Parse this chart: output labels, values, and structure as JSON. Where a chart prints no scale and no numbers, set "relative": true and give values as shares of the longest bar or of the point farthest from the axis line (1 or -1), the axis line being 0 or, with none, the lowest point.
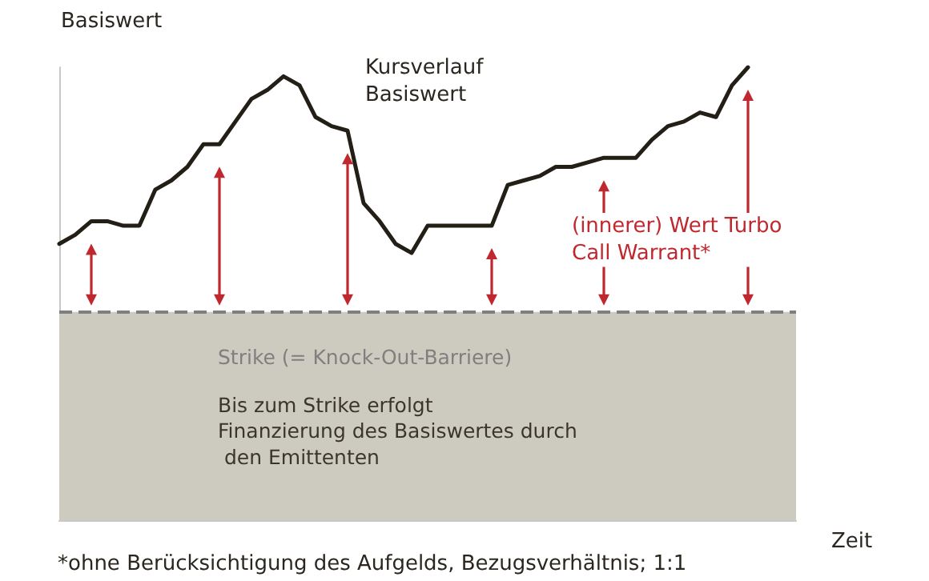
{
  "chart_data": {
    "type": "line",
    "relative": true,
    "ylabel": "Basiswert",
    "xlabel": "Zeit",
    "categories": [
      null,
      null,
      null,
      null,
      null,
      null,
      null,
      null,
      null,
      null,
      null,
      null,
      null,
      null,
      null,
      null,
      null,
      null,
      null,
      null,
      null,
      null,
      null,
      null,
      null,
      null,
      null,
      null,
      null,
      null,
      null,
      null,
      null,
      null,
      null,
      null,
      null,
      null,
      null,
      null,
      null,
      null,
      null,
      null,
      null,
      null,
      null
    ],
    "series": [
      {
        "name": "Kursverlauf Basiswert",
        "color": "#231f16",
        "values": [
          0.61,
          0.63,
          0.66,
          0.66,
          0.65,
          0.65,
          0.73,
          0.75,
          0.78,
          0.83,
          0.83,
          0.88,
          0.93,
          0.95,
          0.98,
          0.96,
          0.89,
          0.87,
          0.86,
          0.7,
          0.66,
          0.61,
          0.59,
          0.65,
          0.65,
          0.65,
          0.65,
          0.65,
          0.74,
          0.75,
          0.76,
          0.78,
          0.78,
          0.79,
          0.8,
          0.8,
          0.8,
          0.84,
          0.87,
          0.88,
          0.9,
          0.89,
          0.96,
          1,
          null,
          null,
          null
        ]
      }
    ],
    "ref_lines": [
      {
        "axis": "y",
        "value": 0.46,
        "label": "Strike (= Knock-Out-Barriere)",
        "color": "#7f7f7f",
        "line_style": "dashed"
      }
    ],
    "bands": [
      {
        "axis": "y",
        "from": 0,
        "to": 0.46,
        "label": "Bis zum Strike erfolgt Finanzierung des Basiswertes durch den Emittenten",
        "color": "#cdcbbf"
      }
    ],
    "annotations": [
      "(innerer) Wert Turbo Call Warrant*",
      "*ohne Berücksichtigung des Aufgelds, Bezugsverhältnis; 1:1"
    ],
    "marker": "none",
    "line_style": "solid",
    "grid": false,
    "legend": false
  }
}
